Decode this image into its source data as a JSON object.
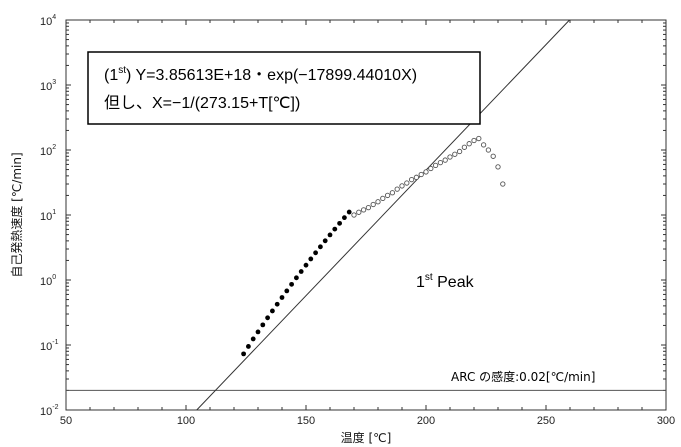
{
  "chart_data": {
    "type": "scatter",
    "xlabel": "温度 [℃]",
    "ylabel": "自己発熱速度 [℃/min]",
    "xlim": [
      50,
      300
    ],
    "ylim": [
      0.01,
      10000
    ],
    "yscale": "log",
    "x_ticks": [
      "50",
      "100",
      "150",
      "200",
      "250",
      "300"
    ],
    "y_ticks": [
      {
        "base": "10",
        "exp": "-2"
      },
      {
        "base": "10",
        "exp": "-1"
      },
      {
        "base": "10",
        "exp": "0"
      },
      {
        "base": "10",
        "exp": "1"
      },
      {
        "base": "10",
        "exp": "2"
      },
      {
        "base": "10",
        "exp": "3"
      },
      {
        "base": "10",
        "exp": "4"
      }
    ],
    "grid": false,
    "fit": {
      "A": 3.85613e+18,
      "B": 17899.4401,
      "equation_prefix": "(1",
      "equation_sup": "st",
      "equation_suffix": ") Y=3.85613E+18・exp(−17899.44010X)",
      "note": "但し、X=−1/(273.15+T[℃])"
    },
    "sensitivity": {
      "value": 0.02,
      "label": "ARC の感度:0.02[℃/min]"
    },
    "peak_label": {
      "main": "1",
      "sup": "st",
      "rest": " Peak"
    },
    "series": [
      {
        "style": "filled",
        "x": [
          124,
          126,
          128,
          130,
          132,
          134,
          136,
          138,
          140,
          142,
          144,
          146,
          148,
          150,
          152,
          154,
          156,
          158,
          160,
          162,
          164,
          166,
          168
        ],
        "y": [
          0.073,
          0.095,
          0.124,
          0.159,
          0.204,
          0.262,
          0.334,
          0.424,
          0.538,
          0.68,
          0.857,
          1.08,
          1.35,
          1.69,
          2.11,
          2.62,
          3.24,
          4.01,
          4.94,
          6.07,
          7.44,
          9.1,
          11.1
        ]
      },
      {
        "style": "open",
        "x": [
          170,
          172,
          174,
          176,
          178,
          180,
          182,
          184,
          186,
          188,
          190,
          192,
          194,
          196,
          198,
          200,
          202,
          204,
          206,
          208,
          210,
          212,
          214,
          216,
          218,
          220,
          222,
          224,
          226,
          228,
          230,
          232
        ],
        "y": [
          10,
          11,
          12,
          13,
          14.5,
          16,
          18,
          20,
          22,
          25,
          28,
          31,
          35,
          38,
          42,
          46,
          52,
          58,
          64,
          70,
          78,
          86,
          95,
          110,
          125,
          140,
          150,
          120,
          100,
          80,
          55,
          30
        ]
      }
    ]
  }
}
